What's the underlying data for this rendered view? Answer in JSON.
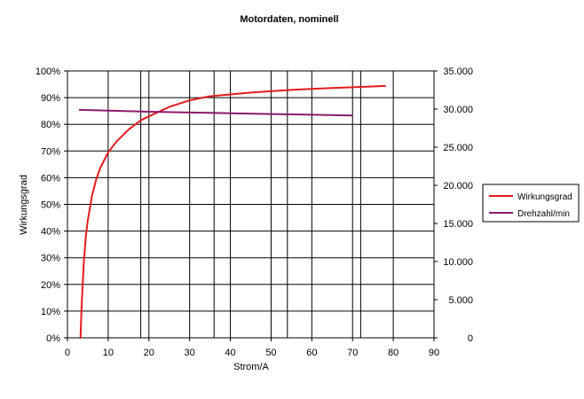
{
  "chart_data": {
    "type": "line",
    "title": "Motordaten, nominell",
    "xlabel": "Strom/A",
    "ylabel": "Wirkungsgrad",
    "y2label": "",
    "xlim": [
      0,
      90
    ],
    "ylim": [
      0,
      100
    ],
    "y2lim": [
      0,
      35000
    ],
    "xticks": [
      "0",
      "10",
      "20",
      "30",
      "40",
      "50",
      "60",
      "70",
      "80",
      "90"
    ],
    "yticks": [
      "0%",
      "10%",
      "20%",
      "30%",
      "40%",
      "50%",
      "60%",
      "70%",
      "80%",
      "90%",
      "100%"
    ],
    "y2ticks": [
      "0",
      "5.000",
      "10.000",
      "15.000",
      "20.000",
      "25.000",
      "30.000",
      "35.000"
    ],
    "extra_vertical_grid_x": [
      18,
      36,
      54,
      72
    ],
    "grid": true,
    "legend_position": "right",
    "series": [
      {
        "name": "Wirkungsgrad",
        "axis": "left",
        "color": "#e41a1c",
        "x": [
          3.2,
          3.5,
          4,
          4.5,
          5,
          6,
          7,
          8,
          10,
          12,
          15,
          18,
          20,
          25,
          30,
          35,
          40,
          45,
          50,
          55,
          60,
          65,
          70,
          75,
          78
        ],
        "y": [
          0,
          13,
          28,
          38,
          44,
          53,
          59,
          63.5,
          69.5,
          73.5,
          78,
          81.5,
          83,
          86.5,
          89,
          90.5,
          91.2,
          91.9,
          92.4,
          92.9,
          93.3,
          93.6,
          93.9,
          94.2,
          94.4
        ]
      },
      {
        "name": "Drehzahl/min",
        "axis": "right",
        "color": "#8b1a6b",
        "x": [
          3,
          10,
          20,
          30,
          40,
          50,
          60,
          70
        ],
        "y": [
          29900,
          29800,
          29650,
          29550,
          29450,
          29350,
          29250,
          29150
        ]
      }
    ]
  }
}
